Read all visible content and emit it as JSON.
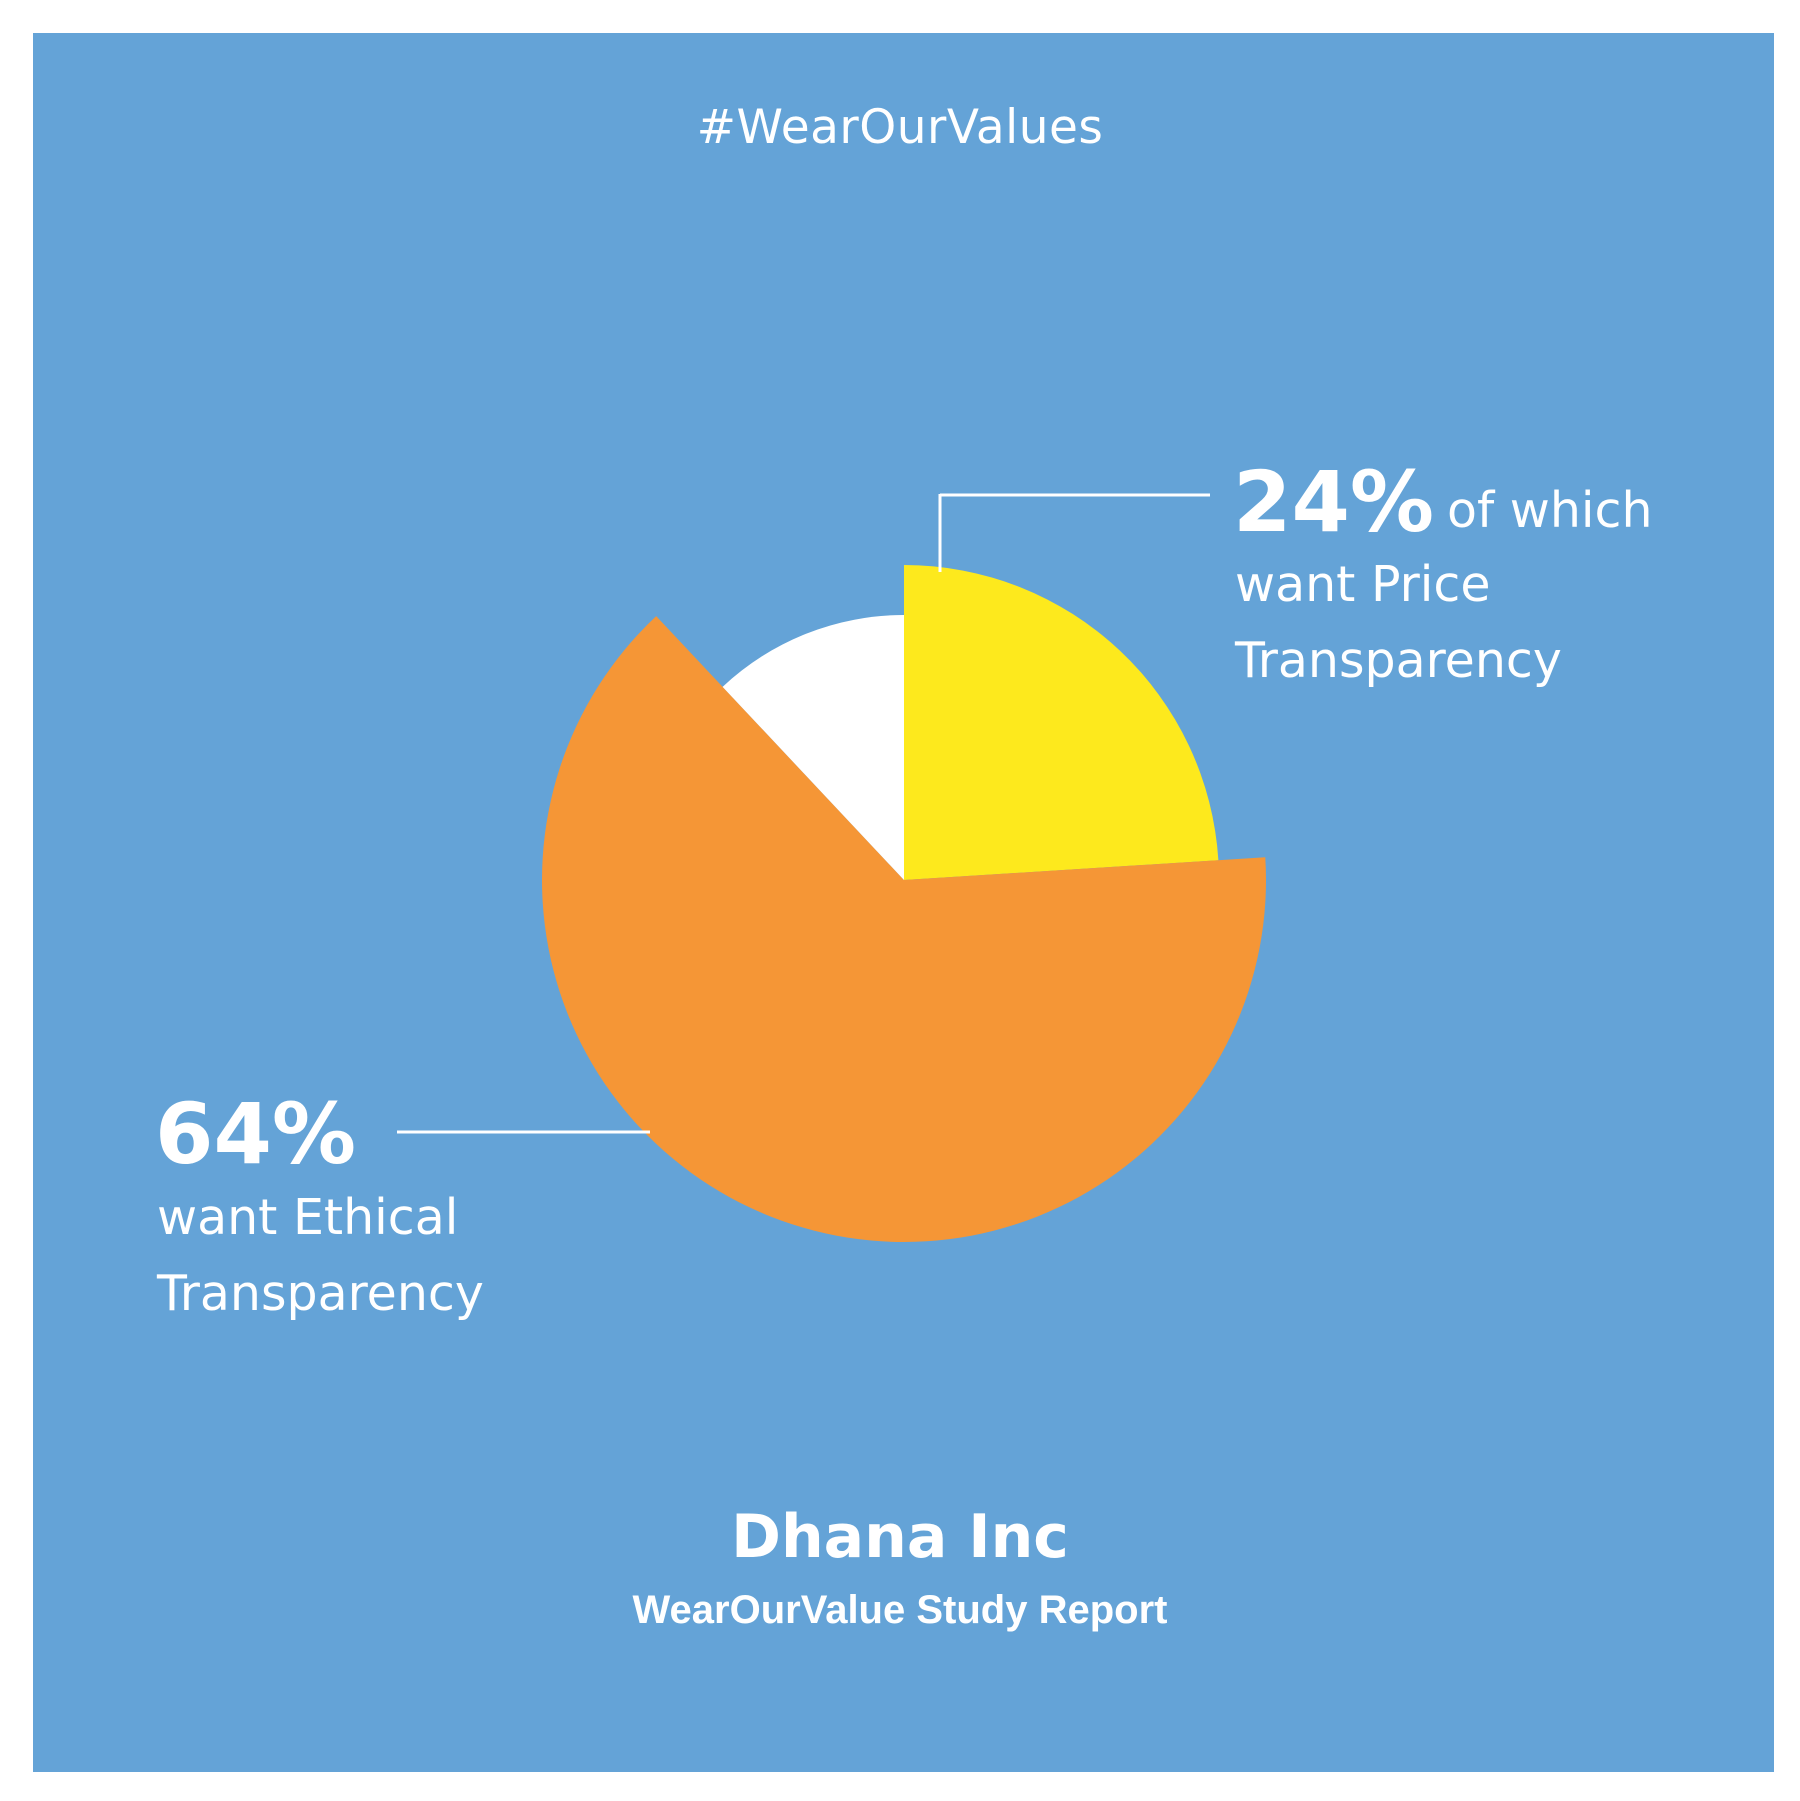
{
  "header": {
    "hashtag": "#WearOurValues"
  },
  "footer": {
    "company": "Dhana Inc",
    "report_title": "WearOurValue Study Report"
  },
  "callouts": {
    "price": {
      "pct": "24%",
      "line1": "of which",
      "line2": "want Price",
      "line3": "Transparency"
    },
    "ethical": {
      "pct": "64%",
      "line1": "want Ethical",
      "line2": "Transparency"
    }
  },
  "colors": {
    "background": "#64a3d7",
    "ethical": "#f59636",
    "price": "#fde91d",
    "other": "#ffffff"
  },
  "chart_data": {
    "type": "pie",
    "series": [
      {
        "name": "want Ethical Transparency",
        "value": 64,
        "color": "#f59636",
        "exploded": true
      },
      {
        "name": "want Price Transparency",
        "value": 24,
        "color": "#fde91d",
        "exploded": true
      },
      {
        "name": "",
        "value": 12,
        "color": "#ffffff",
        "exploded": false
      }
    ],
    "start_angle_deg": 0,
    "direction": "clockwise",
    "legend": "none"
  }
}
